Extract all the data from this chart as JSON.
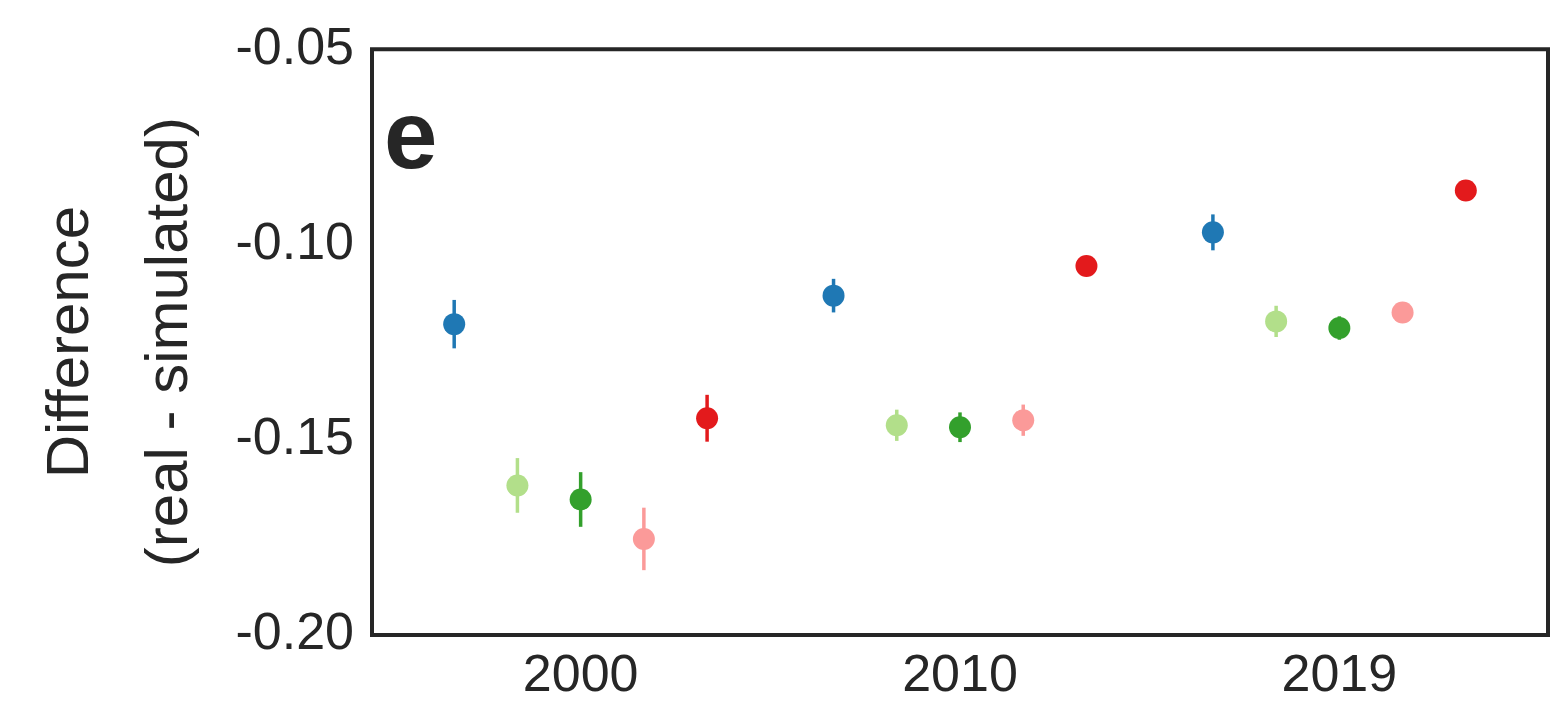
{
  "chart_data": {
    "type": "scatter",
    "ylabel": "Difference\n(real - simulated)",
    "annotations": [
      "e"
    ],
    "categories": [
      "2000",
      "2010",
      "2019"
    ],
    "ylim": [
      -0.2,
      -0.05
    ],
    "yticks": [
      {
        "value": -0.05,
        "label": "-0.05"
      },
      {
        "value": -0.1,
        "label": "-0.10"
      },
      {
        "value": -0.15,
        "label": "-0.15"
      },
      {
        "value": -0.2,
        "label": "-0.20"
      }
    ],
    "grid": false,
    "legend": false,
    "marker": "circle",
    "series": [
      {
        "color": "#1f78b4",
        "values": [
          -0.1204,
          -0.1131,
          -0.0969
        ],
        "errors": [
          0.0062,
          0.0043,
          0.0046
        ]
      },
      {
        "color": "#b2df8a",
        "values": [
          -0.1617,
          -0.1463,
          -0.1197
        ],
        "errors": [
          0.007,
          0.004,
          0.004
        ]
      },
      {
        "color": "#33a02c",
        "values": [
          -0.1653,
          -0.1468,
          -0.1214
        ],
        "errors": [
          0.007,
          0.0038,
          0.003
        ]
      },
      {
        "color": "#fb9a99",
        "values": [
          -0.1754,
          -0.145,
          -0.1174
        ],
        "errors": [
          0.008,
          0.004,
          0.0025
        ]
      },
      {
        "color": "#e31a1c",
        "values": [
          -0.1445,
          -0.1055,
          -0.0862
        ],
        "errors": [
          0.006,
          0.001,
          0.001
        ]
      }
    ]
  }
}
